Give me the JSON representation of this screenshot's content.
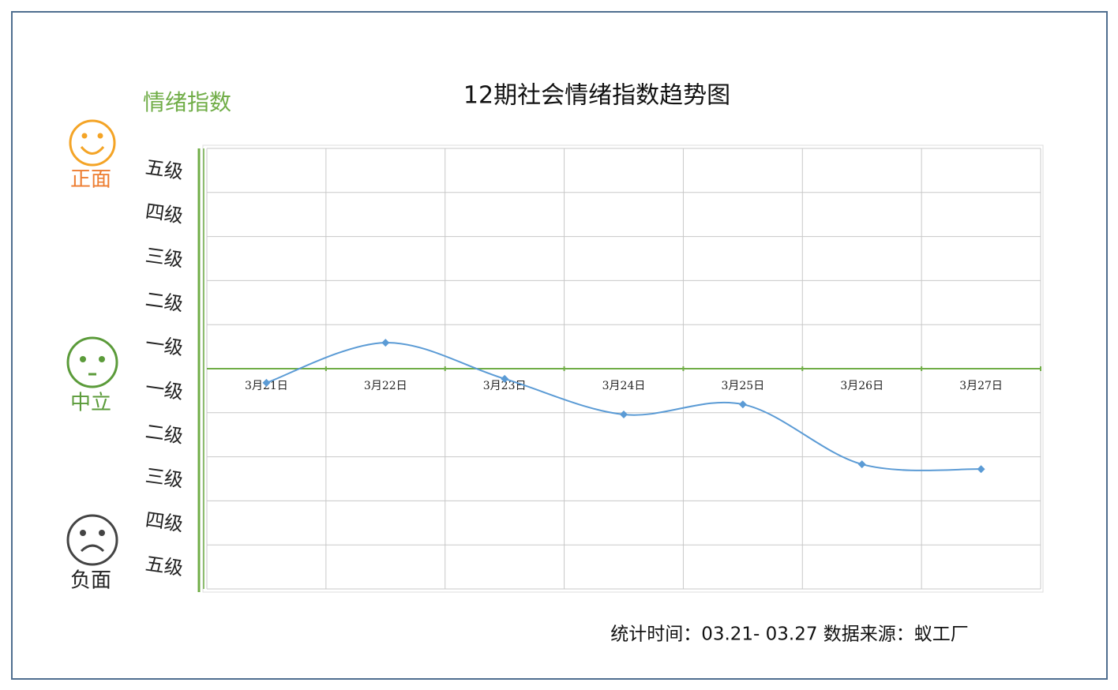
{
  "chart_data": {
    "type": "line",
    "title": "12期社会情绪指数趋势图",
    "y_axis_title": "情绪指数",
    "sentiment_labels": [
      "正面",
      "中立",
      "负面"
    ],
    "footer": "统计时间：03.21- 03.27 数据来源：蚁工厂",
    "categories": [
      "3月21日",
      "3月22日",
      "3月23日",
      "3月24日",
      "3月25日",
      "3月26日",
      "3月27日"
    ],
    "series": [
      {
        "color": "#5b9bd5",
        "values": [
          -0.32,
          0.59,
          -0.23,
          -1.04,
          -0.81,
          -2.17,
          -2.28
        ]
      }
    ],
    "ylim": [
      -5,
      5
    ],
    "yticks": [
      {
        "value": 4.5,
        "label": "五级"
      },
      {
        "value": 3.5,
        "label": "四级"
      },
      {
        "value": 2.5,
        "label": "三级"
      },
      {
        "value": 1.5,
        "label": "二级"
      },
      {
        "value": 0.5,
        "label": "一级"
      },
      {
        "value": -0.5,
        "label": "一级"
      },
      {
        "value": -1.5,
        "label": "二级"
      },
      {
        "value": -2.5,
        "label": "三级"
      },
      {
        "value": -3.5,
        "label": "四级"
      },
      {
        "value": -4.5,
        "label": "五级"
      }
    ],
    "ygrid": [
      -5,
      -4,
      -3,
      -2,
      -1,
      0,
      1,
      2,
      3,
      4,
      5
    ],
    "grid": true,
    "zero_line_color": "#70ad47",
    "smooth": true
  }
}
